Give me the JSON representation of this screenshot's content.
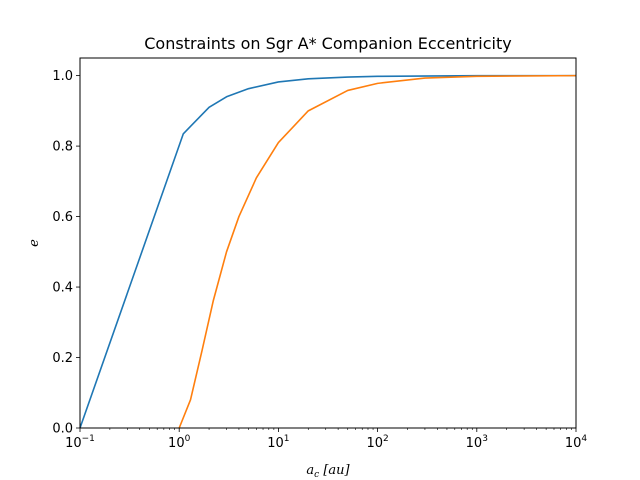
{
  "chart_data": {
    "type": "line",
    "title": "Constraints on Sgr A* Companion Eccentricity",
    "xlabel": {
      "symbol": "a",
      "subscript": "c",
      "unit": "[au]"
    },
    "ylabel": "e",
    "xscale": "log",
    "xlim": [
      0.1,
      10000
    ],
    "ylim": [
      0,
      1.05
    ],
    "grid": false,
    "xticks": [
      {
        "base": "10",
        "exp": "−1"
      },
      {
        "base": "10",
        "exp": "0"
      },
      {
        "base": "10",
        "exp": "1"
      },
      {
        "base": "10",
        "exp": "2"
      },
      {
        "base": "10",
        "exp": "3"
      },
      {
        "base": "10",
        "exp": "4"
      }
    ],
    "xtick_values": [
      0.1,
      1,
      10,
      100,
      1000,
      10000
    ],
    "yticks": [
      "0.0",
      "0.2",
      "0.4",
      "0.6",
      "0.8",
      "1.0"
    ],
    "ytick_values": [
      0,
      0.2,
      0.4,
      0.6,
      0.8,
      1.0
    ],
    "series": [
      {
        "color": "#1f77b4",
        "points": [
          [
            0.1,
            0.0
          ],
          [
            1.1,
            0.835
          ],
          [
            2.0,
            0.91
          ],
          [
            3.0,
            0.94
          ],
          [
            5.0,
            0.963
          ],
          [
            10,
            0.982
          ],
          [
            20,
            0.991
          ],
          [
            50,
            0.996
          ],
          [
            100,
            0.998
          ],
          [
            1000,
            0.9998
          ],
          [
            10000,
            1.0
          ]
        ]
      },
      {
        "color": "#ff7f0e",
        "points": [
          [
            1.0,
            0.0
          ],
          [
            1.3,
            0.08
          ],
          [
            1.7,
            0.22
          ],
          [
            2.2,
            0.36
          ],
          [
            3.0,
            0.5
          ],
          [
            4.0,
            0.6
          ],
          [
            6.0,
            0.71
          ],
          [
            10,
            0.81
          ],
          [
            20,
            0.9
          ],
          [
            50,
            0.958
          ],
          [
            100,
            0.978
          ],
          [
            300,
            0.993
          ],
          [
            1000,
            0.998
          ],
          [
            10000,
            1.0
          ]
        ]
      }
    ]
  }
}
